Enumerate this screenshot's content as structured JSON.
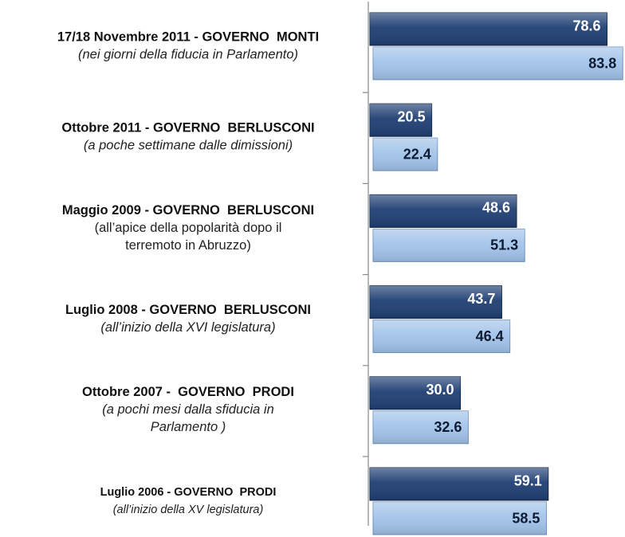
{
  "chart_data": {
    "type": "bar",
    "orientation": "horizontal",
    "categories": [
      "17/18 Novembre 2011 - GOVERNO  MONTI",
      "Ottobre 2011 - GOVERNO  BERLUSCONI",
      "Maggio 2009 - GOVERNO  BERLUSCONI",
      "Luglio 2008 - GOVERNO  BERLUSCONI",
      "Ottobre 2007 -  GOVERNO  PRODI",
      "Luglio 2006 - GOVERNO  PRODI"
    ],
    "category_notes": [
      [
        "(nei giorni della fiducia in Parlamento)"
      ],
      [
        "(a poche settimane dalle dimissioni)"
      ],
      [
        "(all’apice della popolarità dopo il",
        "terremoto in Abruzzo)"
      ],
      [
        "(all’inizio della XVI legislatura)"
      ],
      [
        "(a pochi mesi dalla sfiducia in",
        "Parlamento )"
      ],
      [
        "(all’inizio della XV legislatura)"
      ]
    ],
    "series": [
      {
        "color": "#1f3f73",
        "values": [
          78.6,
          20.5,
          48.6,
          43.7,
          30.0,
          59.1
        ],
        "value_labels": [
          "78.6",
          "20.5",
          "48.6",
          "43.7",
          "30.0",
          "59.1"
        ]
      },
      {
        "color": "#a3c4ea",
        "values": [
          83.8,
          22.4,
          51.3,
          46.4,
          32.6,
          58.5
        ],
        "value_labels": [
          "83.8",
          "22.4",
          "51.3",
          "46.4",
          "32.6",
          "58.5"
        ]
      }
    ],
    "xlim": [
      0,
      84
    ]
  }
}
